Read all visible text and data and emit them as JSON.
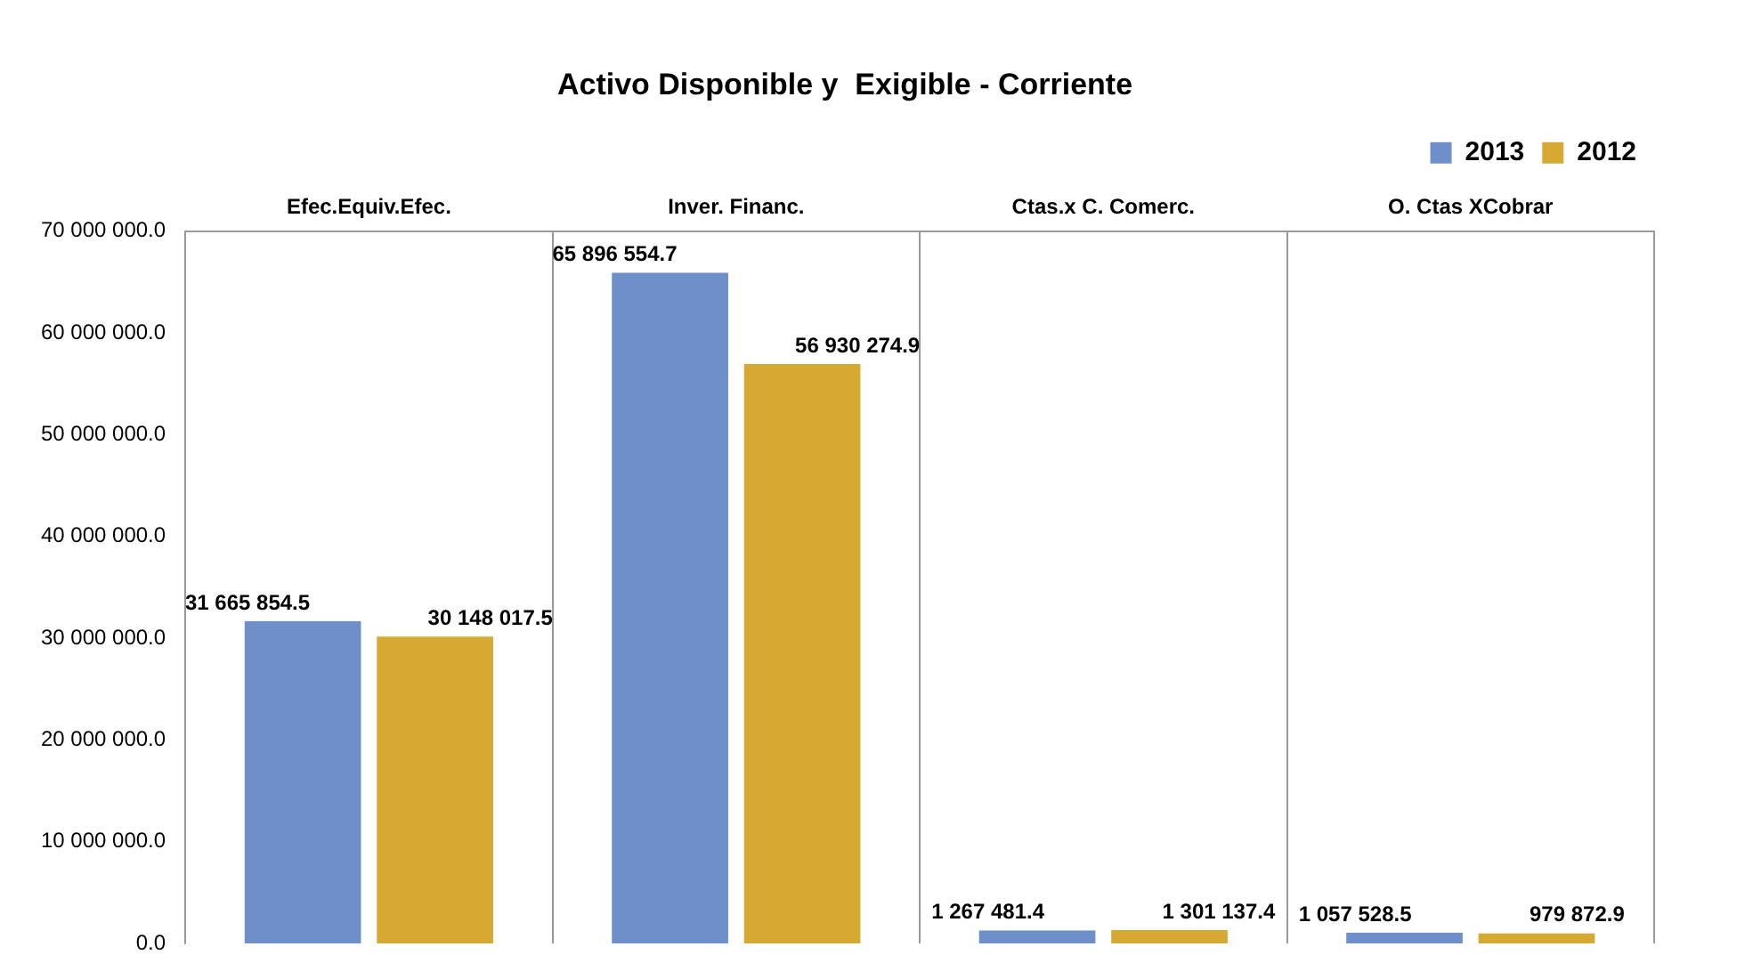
{
  "chart_data": {
    "type": "bar",
    "title": "Activo Disponible y  Exigible - Corriente",
    "categories": [
      "Efec.Equiv.Efec.",
      "Inver. Financ.",
      "Ctas.x C. Comerc.",
      "O. Ctas XCobrar"
    ],
    "series": [
      {
        "name": "2013",
        "color": "#6f8fcb",
        "values": [
          31665854.5,
          65896554.7,
          1267481.4,
          1057528.5
        ],
        "value_labels": [
          "31 665 854.5",
          "65 896 554.7",
          "1 267 481.4",
          "1 057 528.5"
        ]
      },
      {
        "name": "2012",
        "color": "#d6aa32",
        "values": [
          30148017.5,
          56930274.9,
          1301137.4,
          979872.9
        ],
        "value_labels": [
          "30 148 017.5",
          "56 930 274.9",
          "1 301 137.4",
          "979 872.9"
        ]
      }
    ],
    "ylim": [
      0,
      70000000
    ],
    "yticks": [
      {
        "value": 0,
        "label": "0.0"
      },
      {
        "value": 10000000,
        "label": "10 000 000.0"
      },
      {
        "value": 20000000,
        "label": "20 000 000.0"
      },
      {
        "value": 30000000,
        "label": "30 000 000.0"
      },
      {
        "value": 40000000,
        "label": "40 000 000.0"
      },
      {
        "value": 50000000,
        "label": "50 000 000.0"
      },
      {
        "value": 60000000,
        "label": "60 000 000.0"
      },
      {
        "value": 70000000,
        "label": "70 000 000.0"
      }
    ],
    "grid": "x",
    "legend": "top right"
  }
}
